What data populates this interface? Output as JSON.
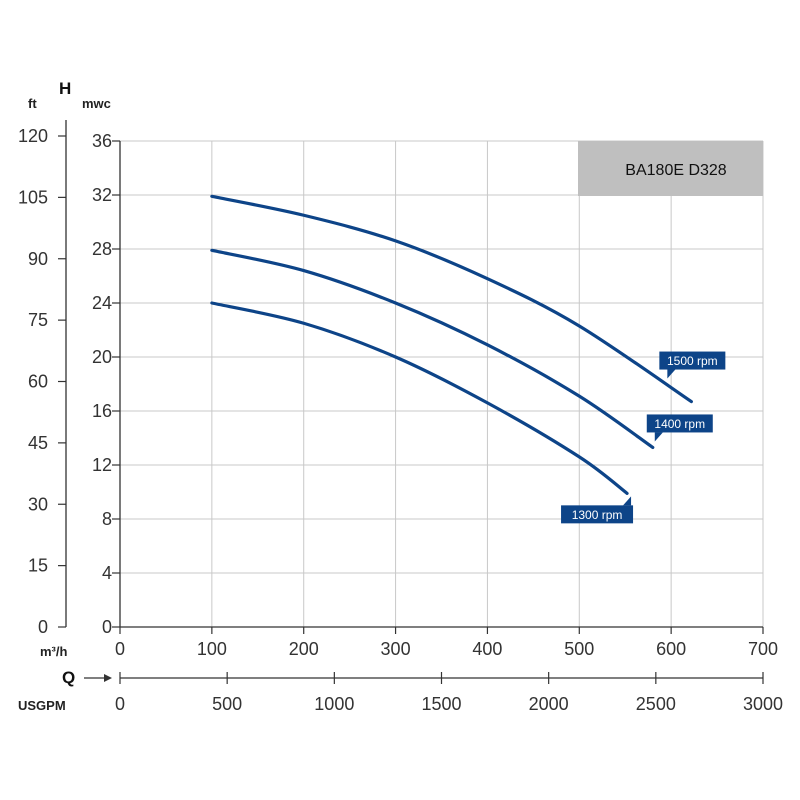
{
  "chart_data": {
    "type": "line",
    "model_label": "BA180E D328",
    "head_axis": {
      "letter": "H",
      "left_unit": "ft",
      "right_unit": "mwc",
      "mwc_ticks": [
        "0",
        "4",
        "8",
        "12",
        "16",
        "20",
        "24",
        "28",
        "32",
        "36"
      ],
      "ft_ticks": [
        "0",
        "15",
        "30",
        "45",
        "60",
        "75",
        "90",
        "105",
        "120"
      ],
      "ylim_mwc": [
        0,
        36
      ],
      "ylim_ft": [
        0,
        120
      ]
    },
    "flow_axis": {
      "letter": "Q",
      "primary_unit": "m³/h",
      "secondary_unit": "USGPM",
      "m3h_ticks": [
        "0",
        "100",
        "200",
        "300",
        "400",
        "500",
        "600",
        "700"
      ],
      "usgpm_ticks": [
        "0",
        "500",
        "1000",
        "1500",
        "2000",
        "2500",
        "3000"
      ],
      "xlim_m3h": [
        0,
        700
      ],
      "xlim_usgpm": [
        0,
        3000
      ]
    },
    "grid": true,
    "series": [
      {
        "name": "1500 rpm",
        "x": [
          100,
          200,
          300,
          400,
          500,
          622
        ],
        "y": [
          31.9,
          30.5,
          28.6,
          25.8,
          22.3,
          16.7
        ]
      },
      {
        "name": "1400 rpm",
        "x": [
          100,
          200,
          300,
          400,
          500,
          580
        ],
        "y": [
          27.9,
          26.4,
          24.0,
          20.9,
          17.1,
          13.3
        ]
      },
      {
        "name": "1300 rpm",
        "x": [
          100,
          200,
          300,
          400,
          500,
          552
        ],
        "y": [
          24.0,
          22.5,
          20.0,
          16.6,
          12.6,
          9.9
        ]
      }
    ],
    "colors": {
      "curve": "#0d4488",
      "label_bg": "#0d4488",
      "model_box": "#bfbfbf",
      "grid": "#c8c8c8",
      "axis": "#333333"
    }
  }
}
